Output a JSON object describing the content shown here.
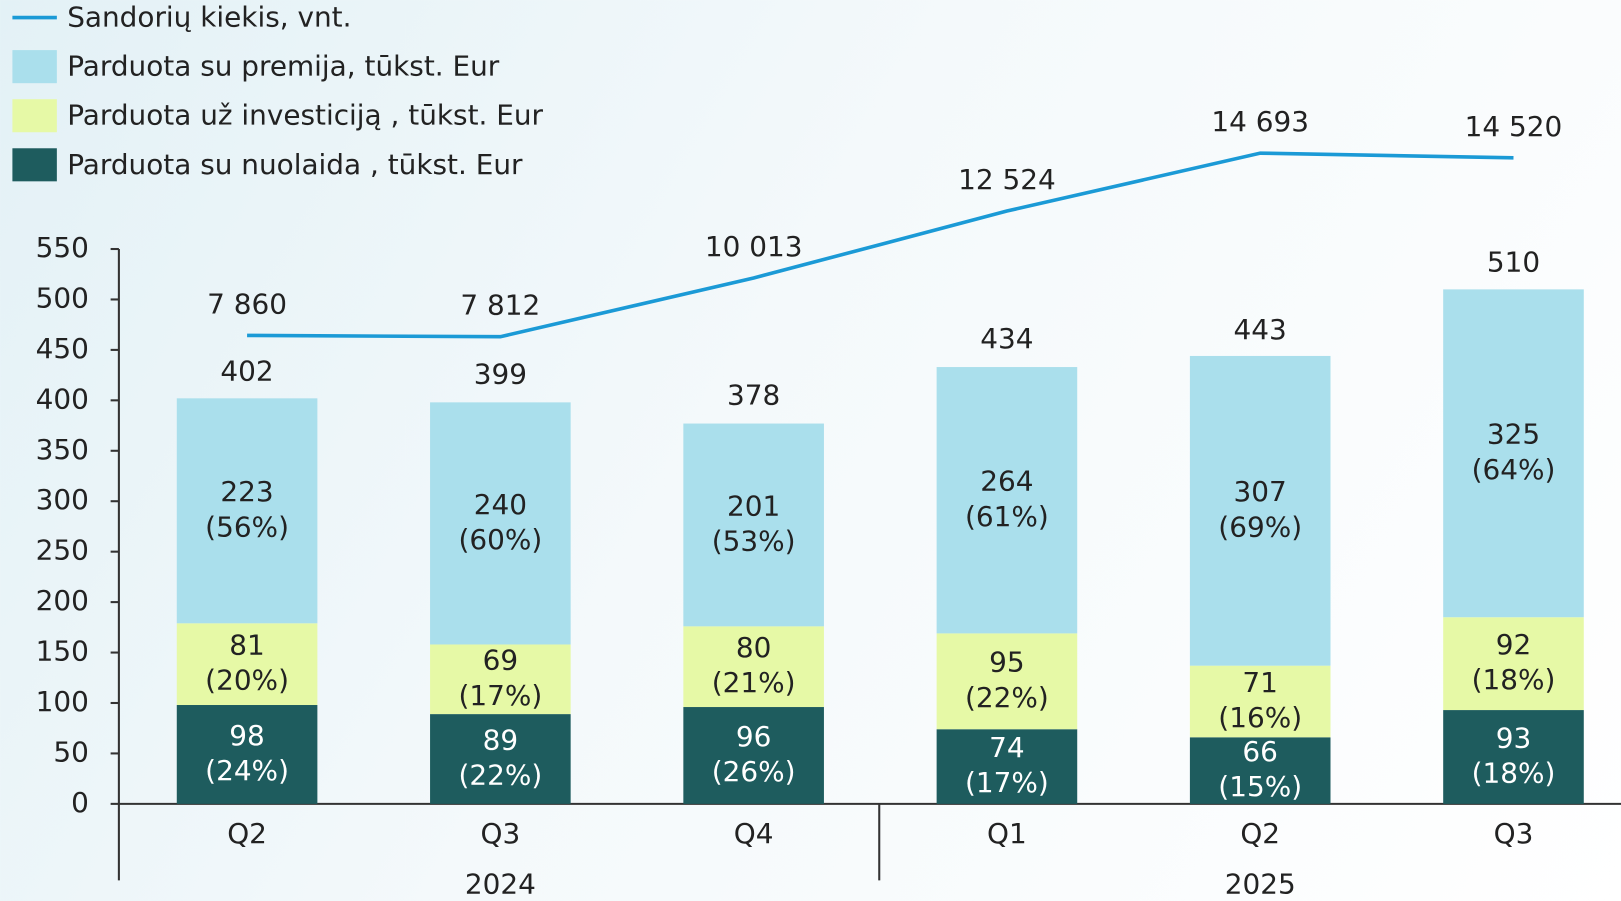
{
  "chart_data": {
    "type": "stacked_bar_line",
    "categories": [
      "Q2",
      "Q3",
      "Q4",
      "Q1",
      "Q2",
      "Q3"
    ],
    "category_groups": [
      {
        "label": "2024",
        "first": 0,
        "last": 2
      },
      {
        "label": "2025",
        "first": 3,
        "last": 5
      }
    ],
    "series": [
      {
        "name": "Parduota su nuolaida , tūkst. Eur",
        "color": "#1e5c5e",
        "text_color": "#ffffff",
        "values": [
          98,
          89,
          96,
          74,
          66,
          93
        ],
        "share_labels": [
          "(24%)",
          "(22%)",
          "(26%)",
          "(17%)",
          "(15%)",
          "(18%)"
        ]
      },
      {
        "name": "Parduota už investiciją , tūkst. Eur",
        "color": "#e6f9a6",
        "text_color": "#222222",
        "values": [
          81,
          69,
          80,
          95,
          71,
          92
        ],
        "share_labels": [
          "(20%)",
          "(17%)",
          "(21%)",
          "(22%)",
          "(16%)",
          "(18%)"
        ]
      },
      {
        "name": "Parduota su premija, tūkst. Eur",
        "color": "#aadfec",
        "text_color": "#222222",
        "values": [
          223,
          240,
          201,
          264,
          307,
          325
        ],
        "share_labels": [
          "(56%)",
          "(60%)",
          "(53%)",
          "(61%)",
          "(69%)",
          "(64%)"
        ]
      },
      {
        "name": "Sandorių kiekis, vnt.",
        "color": "#1b9ad6",
        "type": "line",
        "axis": "y2",
        "values": [
          7860,
          7812,
          10013,
          12524,
          14693,
          14520
        ],
        "value_labels": [
          "7 860",
          "7 812",
          "10 013",
          "12 524",
          "14 693",
          "14 520"
        ]
      }
    ],
    "totals": [
      402,
      399,
      378,
      434,
      443,
      510
    ],
    "ylim": [
      0,
      550
    ],
    "yticks": [
      0,
      50,
      100,
      150,
      200,
      250,
      300,
      350,
      400,
      450,
      500,
      550
    ],
    "y2lim": [
      -9700,
      11100
    ]
  }
}
